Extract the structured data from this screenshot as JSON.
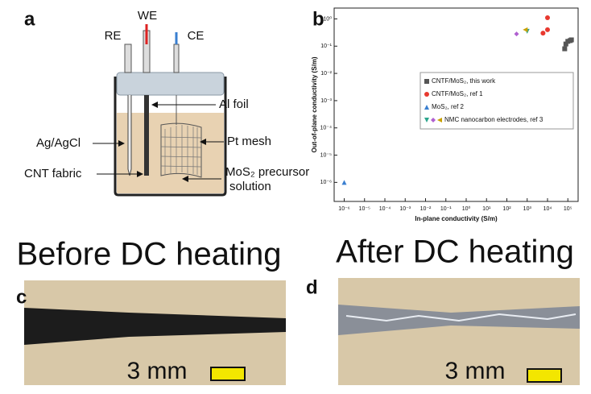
{
  "panel_a": {
    "label": "a",
    "electrodes": [
      "RE",
      "WE",
      "CE"
    ],
    "callouts": [
      "Al foil",
      "Ag/AgCl",
      "Pt mesh",
      "CNT fabric"
    ],
    "solution_label": [
      "MoS₂ precursor",
      "solution"
    ]
  },
  "chart_data": {
    "type": "scatter",
    "panel_label": "b",
    "x_label": "In-plane conductivity (S/m)",
    "y_label": "Out-of-plane conductivity (S/m)",
    "log_x": true,
    "log_y": true,
    "legend": "right",
    "xlim": [
      3.2e-07,
      320000.0
    ],
    "ylim": [
      2e-07,
      2.5
    ],
    "xticks": [
      {
        "value": 1e-06,
        "label": "10⁻⁶"
      },
      {
        "value": 1e-05,
        "label": "10⁻⁵"
      },
      {
        "value": 0.0001,
        "label": "10⁻⁴"
      },
      {
        "value": 0.001,
        "label": "10⁻³"
      },
      {
        "value": 0.01,
        "label": "10⁻²"
      },
      {
        "value": 0.1,
        "label": "10⁻¹"
      },
      {
        "value": 1,
        "label": "10⁰"
      },
      {
        "value": 10,
        "label": "10¹"
      },
      {
        "value": 100,
        "label": "10²"
      },
      {
        "value": 1000,
        "label": "10³"
      },
      {
        "value": 10000,
        "label": "10⁴"
      },
      {
        "value": 100000,
        "label": "10⁵"
      }
    ],
    "yticks": [
      {
        "value": 1e-06,
        "label": "10⁻⁶"
      },
      {
        "value": 1e-05,
        "label": "10⁻⁵"
      },
      {
        "value": 0.0001,
        "label": "10⁻⁴"
      },
      {
        "value": 0.001,
        "label": "10⁻³"
      },
      {
        "value": 0.01,
        "label": "10⁻²"
      },
      {
        "value": 0.1,
        "label": "10⁻¹"
      },
      {
        "value": 1,
        "label": "10⁰"
      }
    ],
    "series": [
      {
        "name": "CNTF/MoS₂, this work",
        "color": "#555555",
        "marker": "square",
        "x": [
          70000,
          80000,
          100000,
          130000,
          150000
        ],
        "y": [
          0.08,
          0.12,
          0.15,
          0.16,
          0.17
        ]
      },
      {
        "name": "CNTF/MoS₂, ref 1",
        "color": "#e8392f",
        "marker": "circle",
        "x": [
          6000,
          10000,
          10000
        ],
        "y": [
          0.3,
          0.4,
          1.1
        ]
      },
      {
        "name": "MoS₂, ref 2",
        "color": "#3a7fd0",
        "marker": "triangle-up",
        "x": [
          1e-06
        ],
        "y": [
          1e-06
        ]
      },
      {
        "name": "NMC nanocarbon electrodes, ref 3",
        "colors": [
          "#2ca58d",
          "#b060d0",
          "#c8a000"
        ],
        "markers": [
          "triangle-down",
          "diamond",
          "triangle-left"
        ],
        "x": [
          1000,
          300,
          800
        ],
        "y": [
          0.35,
          0.28,
          0.4
        ]
      }
    ]
  },
  "panel_c": {
    "label": "c",
    "title": "Before DC heating",
    "scale_bar": "3 mm"
  },
  "panel_d": {
    "label": "d",
    "title": "After DC heating",
    "scale_bar": "3 mm"
  }
}
